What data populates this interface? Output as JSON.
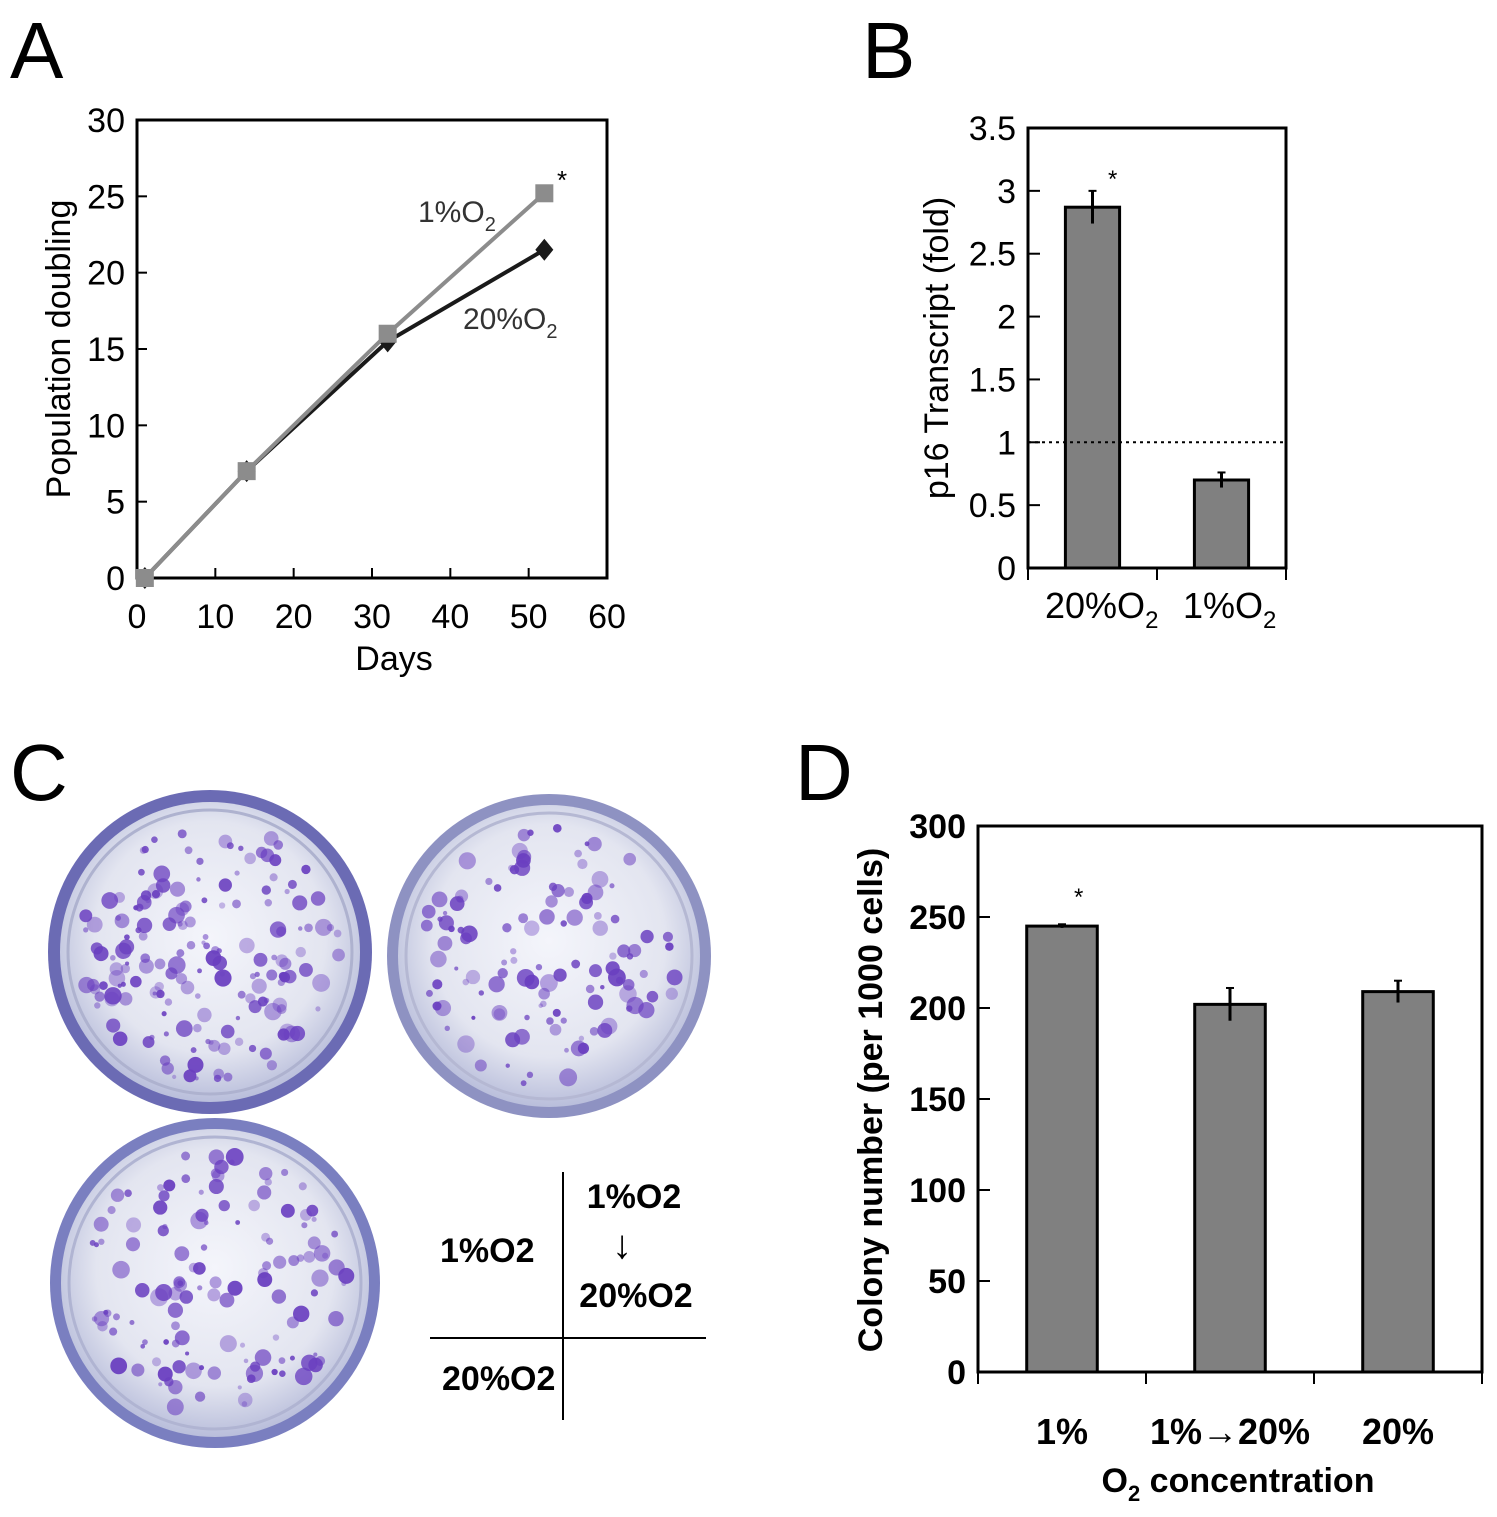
{
  "panels": {
    "a": {
      "letter": "A",
      "series_labels": [
        {
          "main": "1%O",
          "sub": "2"
        },
        {
          "main": "20%O",
          "sub": "2"
        }
      ],
      "significance": "*"
    },
    "b": {
      "letter": "B",
      "significance": "*",
      "categories": [
        {
          "main": "20%O",
          "sub": "2"
        },
        {
          "main": "1%O",
          "sub": "2"
        }
      ]
    },
    "c": {
      "letter": "C",
      "legend_cells": {
        "top_left": "1%O2",
        "top_right_from": "1%O2",
        "arrow": "↓",
        "top_right_to": "20%O2",
        "bottom_left": "20%O2"
      }
    },
    "d": {
      "letter": "D",
      "significance": "*",
      "xlabel": {
        "main": "O",
        "sub": "2",
        "rest": " concentration"
      }
    }
  },
  "colors": {
    "series_20": "#1a1a1a",
    "series_1": "#8c8c8c",
    "bar_fill": "#808080",
    "dish_rim": "#5a5aa8",
    "dish_stain": "#6a3fc0",
    "dish_background": "#d9dcec"
  },
  "chart_data": [
    {
      "panel": "A",
      "type": "line",
      "xlabel": "Days",
      "ylabel": "Population doubling",
      "xlim": [
        0,
        60
      ],
      "ylim": [
        0,
        30
      ],
      "xticks": [
        0,
        10,
        20,
        30,
        40,
        50,
        60
      ],
      "yticks": [
        0,
        5,
        10,
        15,
        20,
        25,
        30
      ],
      "series": [
        {
          "name": "1%O2",
          "x": [
            1,
            14,
            32,
            52
          ],
          "y": [
            0,
            7,
            16,
            25.2
          ],
          "marker": "square"
        },
        {
          "name": "20%O2",
          "x": [
            1,
            14,
            32,
            52
          ],
          "y": [
            0,
            7,
            15.5,
            21.5
          ],
          "marker": "diamond"
        }
      ]
    },
    {
      "panel": "B",
      "type": "bar",
      "ylabel": "p16 Transcript (fold)",
      "ylim": [
        0,
        3.5
      ],
      "yticks": [
        0,
        0.5,
        1,
        1.5,
        2,
        2.5,
        3,
        3.5
      ],
      "categories": [
        "20%O2",
        "1%O2"
      ],
      "values": [
        2.87,
        0.7
      ],
      "errors": [
        0.13,
        0.06
      ],
      "reference_line": 1
    },
    {
      "panel": "D",
      "type": "bar",
      "ylabel": "Colony number (per 1000 cells)",
      "xlabel": "O2 concentration",
      "ylim": [
        0,
        300
      ],
      "yticks": [
        0,
        50,
        100,
        150,
        200,
        250,
        300
      ],
      "categories": [
        "1%",
        "1%→20%",
        "20%"
      ],
      "values": [
        245,
        202,
        209
      ],
      "errors": [
        1,
        9,
        6
      ]
    }
  ]
}
